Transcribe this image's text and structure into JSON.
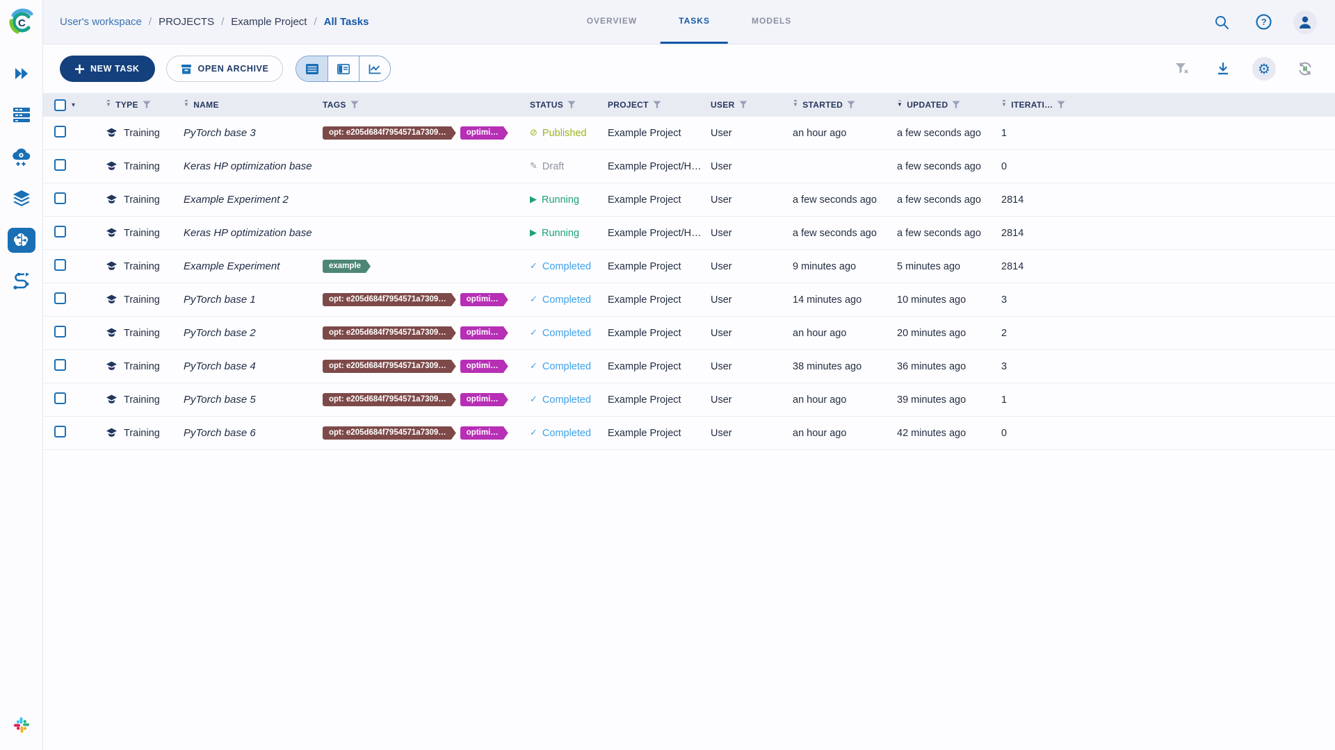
{
  "brand": {
    "logo_letter": "C"
  },
  "breadcrumb": {
    "separator": "/",
    "items": [
      {
        "label": "User's workspace",
        "style": "link"
      },
      {
        "label": "PROJECTS",
        "style": "plain"
      },
      {
        "label": "Example Project",
        "style": "plain"
      },
      {
        "label": "All Tasks",
        "style": "active"
      }
    ]
  },
  "tabs": [
    {
      "label": "OVERVIEW",
      "active": false
    },
    {
      "label": "TASKS",
      "active": true
    },
    {
      "label": "MODELS",
      "active": false
    }
  ],
  "toolbar": {
    "new_task_label": "NEW TASK",
    "open_archive_label": "OPEN ARCHIVE"
  },
  "status_icons": {
    "Published": "⊘",
    "Draft": "✎",
    "Running": "▶",
    "Completed": "✓"
  },
  "tag_colors": {
    "opt": "#7d4a49",
    "optimization": "#b62fb5",
    "example": "#4d8677"
  },
  "table": {
    "columns": [
      {
        "key": "type",
        "label": "TYPE",
        "sort": true,
        "filter": true
      },
      {
        "key": "name",
        "label": "NAME",
        "sort": true,
        "filter": false
      },
      {
        "key": "tags",
        "label": "TAGS",
        "sort": false,
        "filter": true
      },
      {
        "key": "status",
        "label": "STATUS",
        "sort": false,
        "filter": true
      },
      {
        "key": "project",
        "label": "PROJECT",
        "sort": false,
        "filter": true
      },
      {
        "key": "user",
        "label": "USER",
        "sort": false,
        "filter": true
      },
      {
        "key": "started",
        "label": "STARTED",
        "sort": true,
        "filter": true
      },
      {
        "key": "updated",
        "label": "UPDATED",
        "sort": true,
        "filter": true,
        "sorted": "desc"
      },
      {
        "key": "iteration",
        "label": "ITERATI…",
        "sort": true,
        "filter": true
      }
    ],
    "rows": [
      {
        "type": "Training",
        "name": "PyTorch base 3",
        "tags": [
          {
            "label": "opt: e205d684f7954571a7309…",
            "color": "#7d4a49"
          },
          {
            "label": "optimi…",
            "color": "#b62fb5"
          }
        ],
        "status": "Published",
        "project": "Example Project",
        "user": "User",
        "started": "an hour ago",
        "updated": "a few seconds ago",
        "iteration": "1"
      },
      {
        "type": "Training",
        "name": "Keras HP optimization base",
        "tags": [],
        "status": "Draft",
        "project": "Example Project/Hy…",
        "user": "User",
        "started": "",
        "updated": "a few seconds ago",
        "iteration": "0"
      },
      {
        "type": "Training",
        "name": "Example Experiment 2",
        "tags": [],
        "status": "Running",
        "project": "Example Project",
        "user": "User",
        "started": "a few seconds ago",
        "updated": "a few seconds ago",
        "iteration": "2814"
      },
      {
        "type": "Training",
        "name": "Keras HP optimization base",
        "tags": [],
        "status": "Running",
        "project": "Example Project/Hy…",
        "user": "User",
        "started": "a few seconds ago",
        "updated": "a few seconds ago",
        "iteration": "2814"
      },
      {
        "type": "Training",
        "name": "Example Experiment",
        "tags": [
          {
            "label": "example",
            "color": "#4d8677"
          }
        ],
        "status": "Completed",
        "project": "Example Project",
        "user": "User",
        "started": "9 minutes ago",
        "updated": "5 minutes ago",
        "iteration": "2814"
      },
      {
        "type": "Training",
        "name": "PyTorch base 1",
        "tags": [
          {
            "label": "opt: e205d684f7954571a7309…",
            "color": "#7d4a49"
          },
          {
            "label": "optimi…",
            "color": "#b62fb5"
          }
        ],
        "status": "Completed",
        "project": "Example Project",
        "user": "User",
        "started": "14 minutes ago",
        "updated": "10 minutes ago",
        "iteration": "3"
      },
      {
        "type": "Training",
        "name": "PyTorch base 2",
        "tags": [
          {
            "label": "opt: e205d684f7954571a7309…",
            "color": "#7d4a49"
          },
          {
            "label": "optimi…",
            "color": "#b62fb5"
          }
        ],
        "status": "Completed",
        "project": "Example Project",
        "user": "User",
        "started": "an hour ago",
        "updated": "20 minutes ago",
        "iteration": "2"
      },
      {
        "type": "Training",
        "name": "PyTorch base 4",
        "tags": [
          {
            "label": "opt: e205d684f7954571a7309…",
            "color": "#7d4a49"
          },
          {
            "label": "optimi…",
            "color": "#b62fb5"
          }
        ],
        "status": "Completed",
        "project": "Example Project",
        "user": "User",
        "started": "38 minutes ago",
        "updated": "36 minutes ago",
        "iteration": "3"
      },
      {
        "type": "Training",
        "name": "PyTorch base 5",
        "tags": [
          {
            "label": "opt: e205d684f7954571a7309…",
            "color": "#7d4a49"
          },
          {
            "label": "optimi…",
            "color": "#b62fb5"
          }
        ],
        "status": "Completed",
        "project": "Example Project",
        "user": "User",
        "started": "an hour ago",
        "updated": "39 minutes ago",
        "iteration": "1"
      },
      {
        "type": "Training",
        "name": "PyTorch base 6",
        "tags": [
          {
            "label": "opt: e205d684f7954571a7309…",
            "color": "#7d4a49"
          },
          {
            "label": "optimi…",
            "color": "#b62fb5"
          }
        ],
        "status": "Completed",
        "project": "Example Project",
        "user": "User",
        "started": "an hour ago",
        "updated": "42 minutes ago",
        "iteration": "0"
      }
    ]
  }
}
